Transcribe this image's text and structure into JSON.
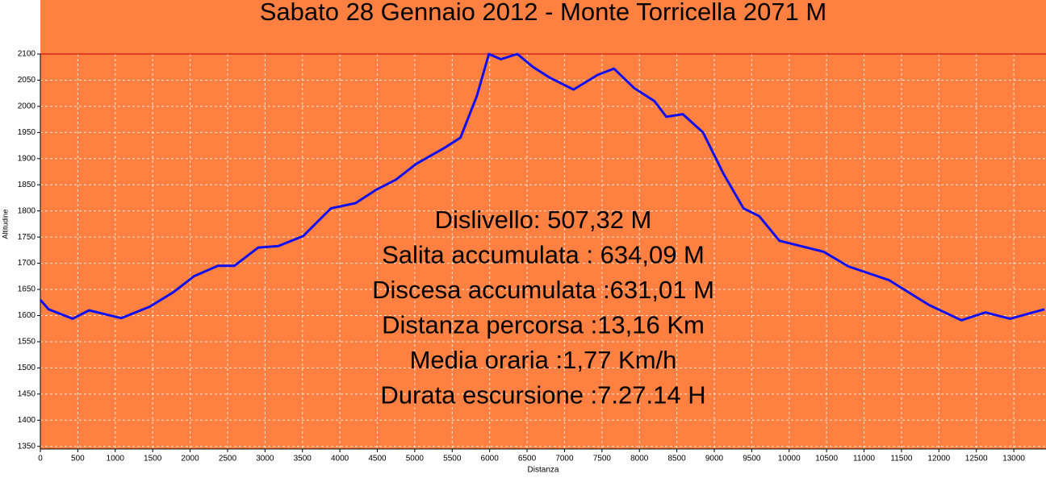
{
  "chart_data": {
    "type": "line",
    "title": "Sabato 28 Gennaio 2012 - Monte Torricella 2071 M",
    "x_label": "Distanza",
    "y_label": "Altitudine",
    "annotations": [
      "Dislivello:  507,32  M",
      "Salita accumulata : 634,09  M",
      "Discesa accumulata :631,01 M",
      "Distanza percorsa :13,16 Km",
      "Media oraria  :1,77   Km/h",
      "Durata escursione  :7.27.14 H"
    ],
    "x": [
      0,
      110,
      430,
      650,
      1080,
      1460,
      1780,
      2050,
      2370,
      2590,
      2910,
      3180,
      3510,
      3880,
      4210,
      4480,
      4750,
      5020,
      5390,
      5610,
      5830,
      5990,
      6150,
      6370,
      6580,
      6800,
      7120,
      7440,
      7660,
      7930,
      8200,
      8360,
      8580,
      8850,
      9120,
      9390,
      9600,
      9870,
      10460,
      10790,
      11330,
      11870,
      12300,
      12620,
      12950,
      13410
    ],
    "series": [
      {
        "name": "Altitudine",
        "color": "#1010ee",
        "values": [
          1630,
          1612,
          1594,
          1610,
          1595,
          1617,
          1645,
          1675,
          1695,
          1695,
          1730,
          1733,
          1752,
          1805,
          1815,
          1840,
          1860,
          1890,
          1920,
          1940,
          2020,
          2100,
          2090,
          2100,
          2075,
          2055,
          2032,
          2060,
          2072,
          2035,
          2010,
          1980,
          1985,
          1950,
          1872,
          1805,
          1790,
          1743,
          1722,
          1694,
          1668,
          1620,
          1591,
          1606,
          1594,
          1612
        ]
      }
    ],
    "xlim": [
      0,
      13430
    ],
    "ylim": [
      1345,
      2100
    ],
    "xticks": [
      0,
      500,
      1000,
      1500,
      2000,
      2500,
      3000,
      3500,
      4000,
      4500,
      5000,
      5500,
      6000,
      6500,
      7000,
      7500,
      8000,
      8500,
      9000,
      9500,
      10000,
      10500,
      11000,
      11500,
      12000,
      12500,
      13000
    ],
    "yticks": [
      1350,
      1400,
      1450,
      1500,
      1550,
      1600,
      1650,
      1700,
      1750,
      1800,
      1850,
      1900,
      1950,
      2000,
      2050,
      2100
    ],
    "grid": true,
    "background": "#ff8040"
  }
}
